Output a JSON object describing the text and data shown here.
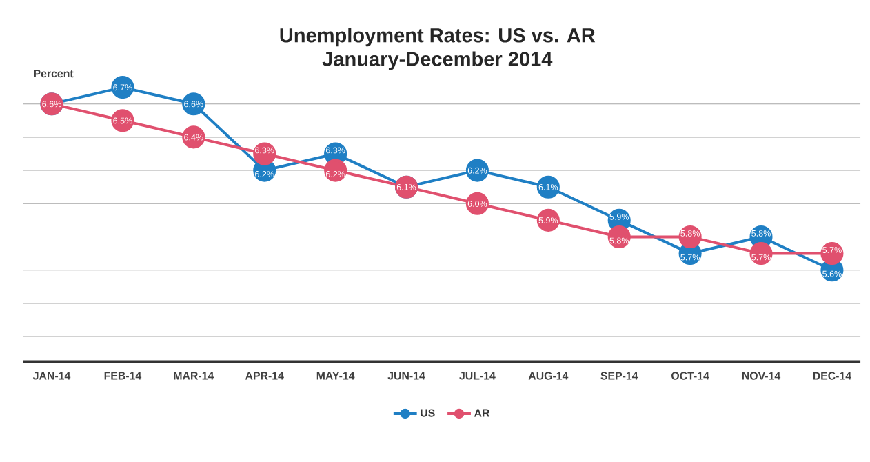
{
  "chart_data": {
    "type": "line",
    "title": "Unemployment Rates: US vs. AR",
    "subtitle": "January-December 2014",
    "ylabel": "Percent",
    "categories": [
      "JAN-14",
      "FEB-14",
      "MAR-14",
      "APR-14",
      "MAY-14",
      "JUN-14",
      "JUL-14",
      "AUG-14",
      "SEP-14",
      "OCT-14",
      "NOV-14",
      "DEC-14"
    ],
    "series": [
      {
        "name": "US",
        "color": "#1f7fc4",
        "values": [
          6.6,
          6.7,
          6.6,
          6.2,
          6.3,
          6.1,
          6.2,
          6.1,
          5.9,
          5.7,
          5.8,
          5.6
        ],
        "value_labels": [
          null,
          "6.7%",
          "6.6%",
          "6.2%",
          "6.3%",
          null,
          "6.2%",
          "6.1%",
          "5.9%",
          "5.7%",
          "5.8%",
          "5.6%"
        ]
      },
      {
        "name": "AR",
        "color": "#e0506e",
        "values": [
          6.6,
          6.5,
          6.4,
          6.3,
          6.2,
          6.1,
          6.0,
          5.9,
          5.8,
          5.8,
          5.7,
          5.7
        ],
        "value_labels": [
          "6.6%",
          "6.5%",
          "6.4%",
          "6.3%",
          "6.2%",
          "6.1%",
          "6.0%",
          "5.9%",
          "5.8%",
          "5.8%",
          "5.7%",
          "5.7%"
        ]
      }
    ],
    "tick_labels": "x",
    "grid": "y",
    "legend": "bottom",
    "marker": "circle",
    "line_style": "solid"
  }
}
